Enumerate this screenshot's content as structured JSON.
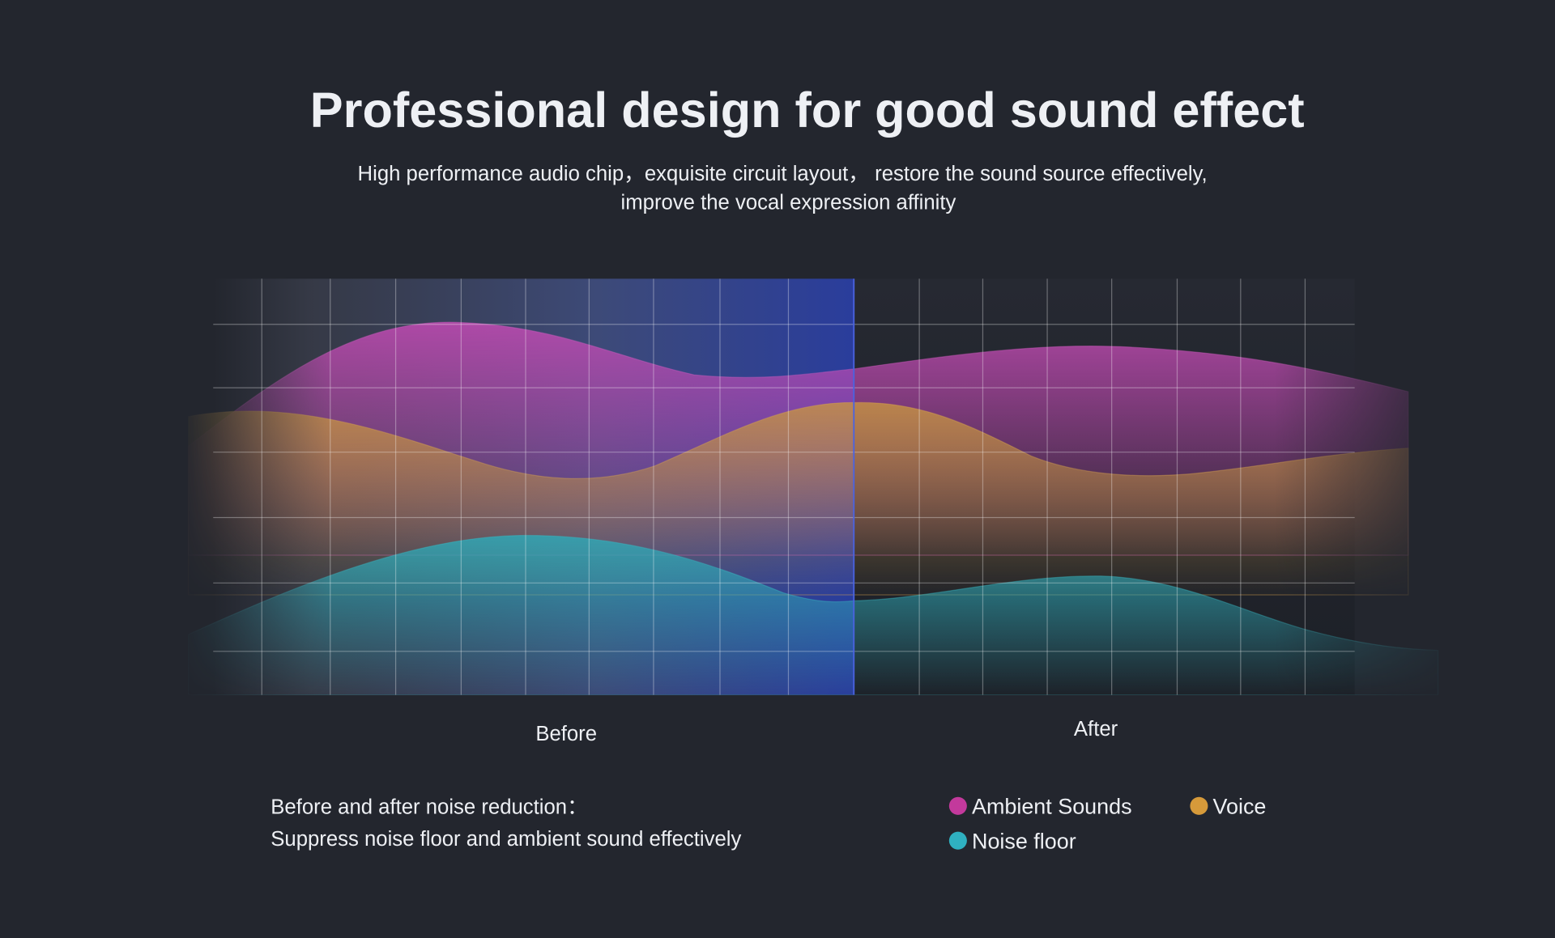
{
  "header": {
    "title": "Professional design for good sound effect",
    "subtitle": [
      "High performance audio chip，exquisite circuit  layout，  restore the sound source effectively,",
      "improve the vocal expression affinity"
    ]
  },
  "panels": {
    "before": "Before",
    "after": "After"
  },
  "caption": [
    "Before and after noise reduction：",
    "Suppress noise floor and ambient sound effectively"
  ],
  "legend": [
    "Ambient Sounds",
    "Voice",
    "Noise floor"
  ]
}
